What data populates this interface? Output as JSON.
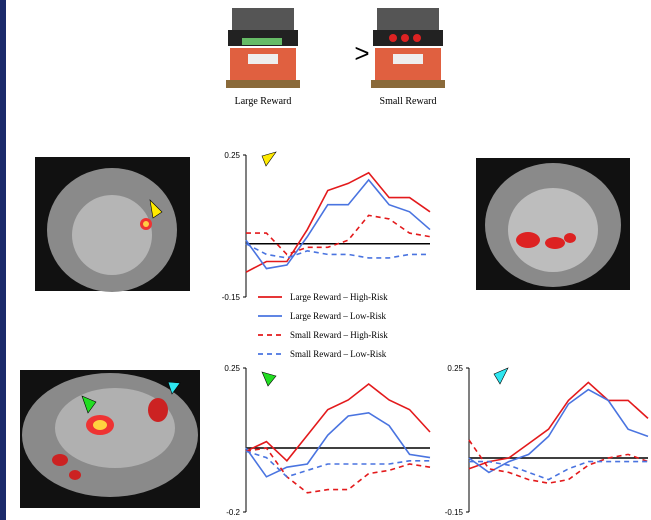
{
  "figure": {
    "comparison": ">",
    "conditions": [
      "Large Reward",
      "Small Reward"
    ]
  },
  "chart_data": [
    {
      "type": "line",
      "ylim": [
        -0.15,
        0.25
      ],
      "yticks": [
        -0.15,
        0.25
      ],
      "categories": [
        null,
        null,
        null,
        null,
        null,
        null,
        null,
        null,
        null,
        null
      ],
      "series": [
        {
          "name": "Large Reward – High-Risk",
          "color": "#e31a1c",
          "line_style": "solid",
          "values": [
            -0.08,
            -0.05,
            -0.05,
            0.04,
            0.15,
            0.17,
            0.2,
            0.13,
            0.13,
            0.09
          ]
        },
        {
          "name": "Large Reward – Low-Risk",
          "color": "#4a74e0",
          "line_style": "solid",
          "values": [
            0.01,
            -0.07,
            -0.06,
            0.02,
            0.11,
            0.11,
            0.18,
            0.11,
            0.09,
            0.04
          ]
        },
        {
          "name": "Small Reward – High-Risk",
          "color": "#e31a1c",
          "line_style": "dashed",
          "values": [
            0.03,
            0.03,
            -0.03,
            -0.01,
            -0.01,
            0.01,
            0.08,
            0.07,
            0.03,
            0.02
          ]
        },
        {
          "name": "Small Reward – Low-Risk",
          "color": "#4a74e0",
          "line_style": "dashed",
          "values": [
            0.0,
            -0.03,
            -0.04,
            -0.02,
            -0.03,
            -0.03,
            -0.04,
            -0.04,
            -0.03,
            -0.03
          ]
        }
      ]
    },
    {
      "type": "line",
      "ylim": [
        -0.2,
        0.25
      ],
      "yticks": [
        -0.2,
        0.25
      ],
      "categories": [
        null,
        null,
        null,
        null,
        null,
        null,
        null,
        null,
        null,
        null
      ],
      "series": [
        {
          "color": "#e31a1c",
          "line_style": "solid",
          "values": [
            -0.01,
            0.02,
            -0.04,
            0.04,
            0.12,
            0.15,
            0.2,
            0.15,
            0.12,
            0.05
          ]
        },
        {
          "color": "#4a74e0",
          "line_style": "solid",
          "values": [
            0.0,
            -0.09,
            -0.06,
            -0.05,
            0.04,
            0.1,
            0.11,
            0.07,
            -0.02,
            -0.03
          ]
        },
        {
          "color": "#e31a1c",
          "line_style": "dashed",
          "values": [
            -0.01,
            0.0,
            -0.09,
            -0.14,
            -0.13,
            -0.13,
            -0.08,
            -0.07,
            -0.05,
            -0.06
          ]
        },
        {
          "color": "#4a74e0",
          "line_style": "dashed",
          "values": [
            -0.01,
            -0.03,
            -0.09,
            -0.07,
            -0.05,
            -0.05,
            -0.05,
            -0.05,
            -0.04,
            -0.04
          ]
        }
      ]
    },
    {
      "type": "line",
      "ylim": [
        -0.15,
        0.25
      ],
      "yticks": [
        -0.15,
        0.25
      ],
      "categories": [
        null,
        null,
        null,
        null,
        null,
        null,
        null,
        null,
        null,
        null
      ],
      "series": [
        {
          "color": "#e31a1c",
          "line_style": "solid",
          "values": [
            -0.03,
            -0.01,
            0.0,
            0.04,
            0.08,
            0.16,
            0.21,
            0.16,
            0.16,
            0.11
          ]
        },
        {
          "color": "#4a74e0",
          "line_style": "solid",
          "values": [
            0.0,
            -0.04,
            -0.01,
            0.01,
            0.06,
            0.15,
            0.19,
            0.16,
            0.08,
            0.06
          ]
        },
        {
          "color": "#e31a1c",
          "line_style": "dashed",
          "values": [
            0.05,
            -0.03,
            -0.04,
            -0.06,
            -0.07,
            -0.06,
            -0.02,
            0.0,
            0.01,
            -0.01
          ]
        },
        {
          "color": "#4a74e0",
          "line_style": "dashed",
          "values": [
            -0.01,
            -0.01,
            -0.02,
            -0.04,
            -0.06,
            -0.03,
            -0.01,
            -0.01,
            -0.01,
            -0.01
          ]
        }
      ]
    }
  ]
}
